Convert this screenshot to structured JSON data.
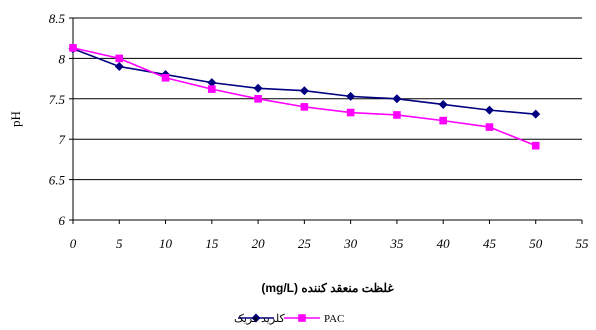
{
  "chart_data": {
    "type": "line",
    "xlabel": "غلظت منعقد کننده (mg/L)",
    "ylabel": "pH",
    "xlim": [
      0,
      55
    ],
    "ylim": [
      6,
      8.5
    ],
    "x_ticks": [
      "0",
      "5",
      "10",
      "15",
      "20",
      "25",
      "30",
      "35",
      "40",
      "45",
      "50",
      "55"
    ],
    "y_ticks": [
      "6",
      "6.5",
      "7",
      "7.5",
      "8",
      "8.5"
    ],
    "grid": "horizontal",
    "legend_position": "bottom",
    "series": [
      {
        "name": "کلرید فریک",
        "color": "#000080",
        "marker": "diamond",
        "x": [
          0,
          5,
          10,
          15,
          20,
          25,
          30,
          35,
          40,
          45,
          50
        ],
        "values": [
          8.12,
          7.9,
          7.8,
          7.7,
          7.63,
          7.6,
          7.53,
          7.5,
          7.43,
          7.36,
          7.31
        ]
      },
      {
        "name": "PAC",
        "color": "#ff00ff",
        "marker": "square",
        "x": [
          0,
          5,
          10,
          15,
          20,
          25,
          30,
          35,
          40,
          45,
          50
        ],
        "values": [
          8.13,
          8.0,
          7.76,
          7.62,
          7.5,
          7.4,
          7.33,
          7.3,
          7.23,
          7.15,
          6.92
        ]
      }
    ]
  }
}
